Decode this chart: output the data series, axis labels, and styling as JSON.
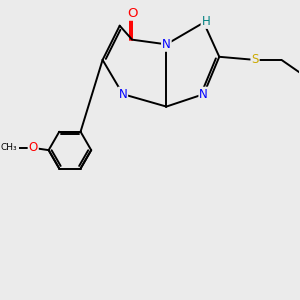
{
  "bg_color": "#ebebeb",
  "bond_color": "#000000",
  "bond_width": 1.4,
  "atom_colors": {
    "N": "#0000ff",
    "O": "#ff0000",
    "S": "#ccaa00",
    "H": "#008080",
    "C": "#000000"
  },
  "figsize": [
    3.0,
    3.0
  ],
  "dpi": 100,
  "xlim": [
    0,
    10
  ],
  "ylim": [
    0,
    10
  ]
}
